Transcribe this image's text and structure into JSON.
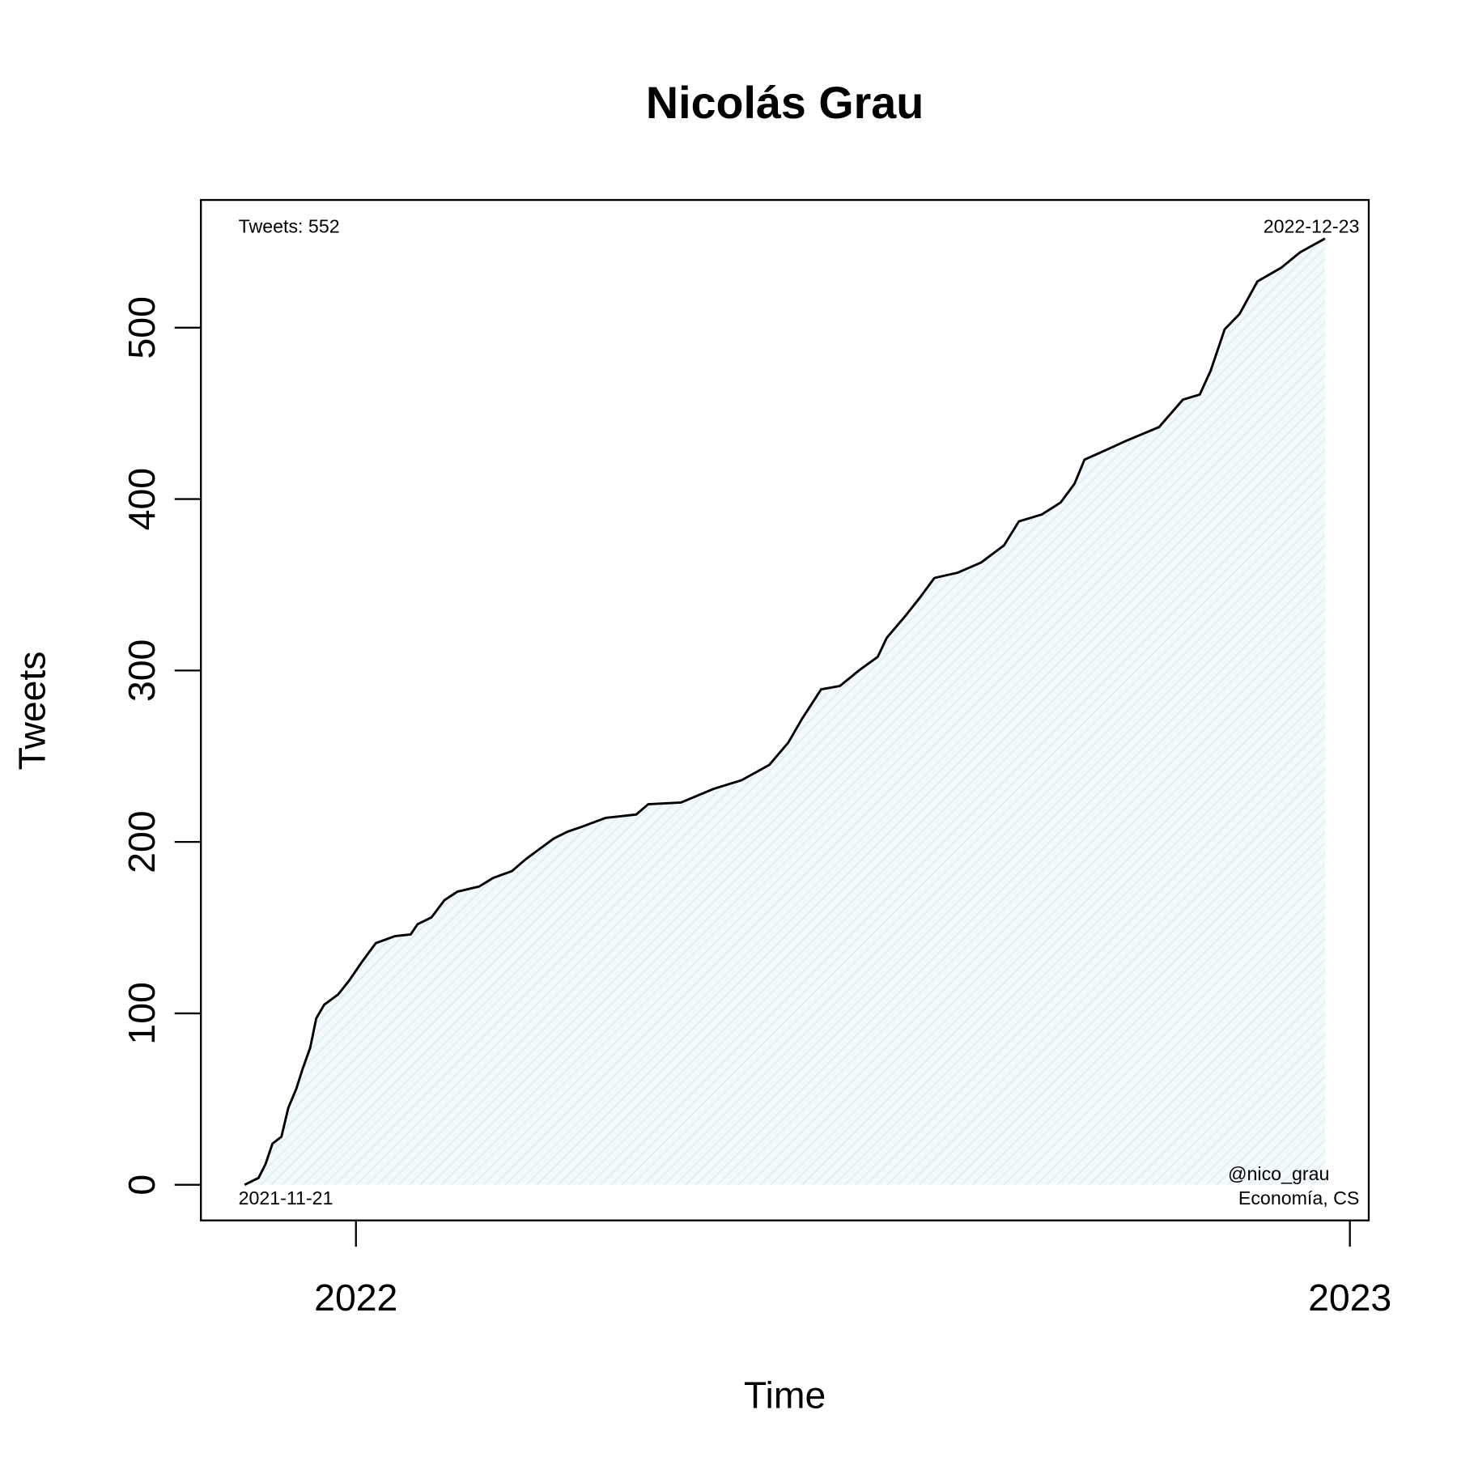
{
  "chart_data": {
    "type": "line",
    "title": "Nicolás Grau",
    "x_label": "Time",
    "y_label": "Tweets",
    "x": [
      2021.888,
      2021.902,
      2021.909,
      2021.916,
      2021.925,
      2021.932,
      2021.94,
      2021.946,
      2021.954,
      2021.96,
      2021.968,
      2021.982,
      2021.993,
      2022.006,
      2022.02,
      2022.039,
      2022.055,
      2022.062,
      2022.076,
      2022.089,
      2022.102,
      2022.124,
      2022.138,
      2022.157,
      2022.171,
      2022.185,
      2022.199,
      2022.213,
      2022.228,
      2022.251,
      2022.282,
      2022.294,
      2022.327,
      2022.36,
      2022.388,
      2022.416,
      2022.435,
      2022.449,
      2022.468,
      2022.487,
      2022.506,
      2022.525,
      2022.534,
      2022.553,
      2022.568,
      2022.582,
      2022.605,
      2022.629,
      2022.652,
      2022.667,
      2022.69,
      2022.709,
      2022.723,
      2022.733,
      2022.756,
      2022.775,
      2022.808,
      2022.832,
      2022.849,
      2022.86,
      2022.874,
      2022.889,
      2022.907,
      2022.931,
      2022.95,
      2022.975
    ],
    "series": [
      {
        "name": "Tweets",
        "color": "#000000",
        "fill": "#d6ebf2",
        "values": [
          0,
          4,
          12,
          24,
          28,
          45,
          56,
          67,
          80,
          97,
          105,
          111,
          119,
          130,
          141,
          145,
          146,
          152,
          156,
          166,
          171,
          174,
          179,
          183,
          190,
          196,
          202,
          206,
          209,
          214,
          216,
          222,
          223,
          231,
          236,
          245,
          258,
          272,
          289,
          291,
          300,
          308,
          319,
          332,
          343,
          354,
          357,
          363,
          373,
          387,
          391,
          398,
          409,
          423,
          429,
          434,
          442,
          458,
          461,
          475,
          499,
          508,
          527,
          535,
          544,
          552
        ]
      }
    ],
    "xlim": [
      2021.844,
      2023.019
    ],
    "xticks": [
      2022,
      2023
    ],
    "ylim": [
      -20.8,
      574.5
    ],
    "yticks": [
      0,
      100,
      200,
      300,
      400,
      500
    ],
    "annotations": [
      "Tweets: 552",
      "2022-12-23",
      "2021-11-21",
      "@nico_grau",
      "Economía, CS"
    ],
    "grid": false
  }
}
